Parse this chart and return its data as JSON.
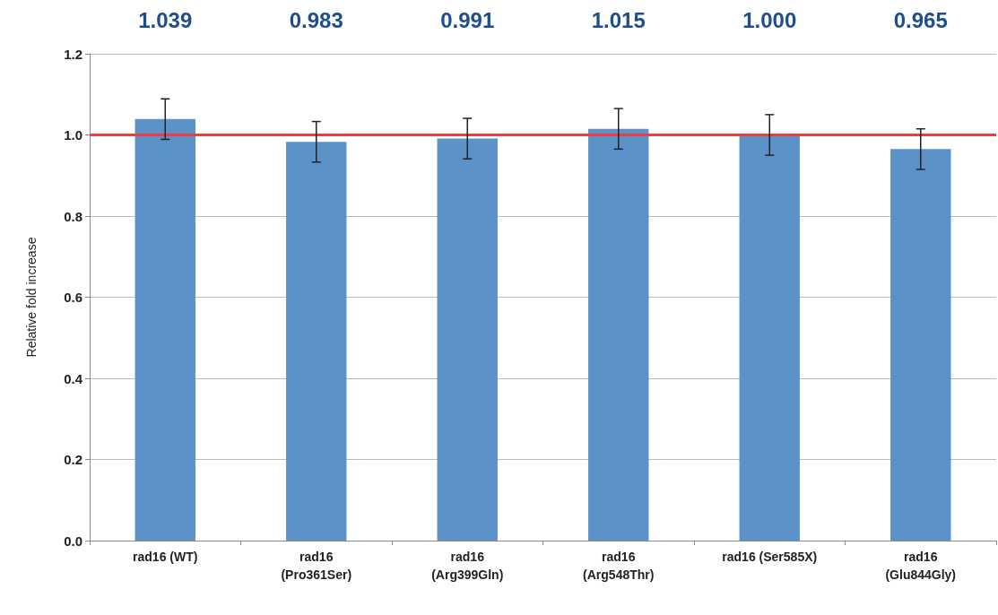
{
  "chart_data": {
    "type": "bar",
    "ylabel": "Relative fold increase",
    "categories": [
      "rad16 (WT)",
      "rad16\n(Pro361Ser)",
      "rad16\n(Arg399Gln)",
      "rad16\n(Arg548Thr)",
      "rad16 (Ser585X)",
      "rad16\n(Glu844Gly)"
    ],
    "values": [
      1.039,
      0.983,
      0.991,
      1.015,
      1.0,
      0.965
    ],
    "errors": [
      0.05,
      0.05,
      0.05,
      0.05,
      0.05,
      0.05
    ],
    "color": "#5b93c9",
    "annotations": [
      "1.039",
      "0.983",
      "0.991",
      "1.015",
      "1.000",
      "0.965"
    ],
    "ylim": [
      0,
      1.2
    ],
    "yticks": [
      {
        "value": 0,
        "label": "0.0"
      },
      {
        "value": 0.2,
        "label": "0.2"
      },
      {
        "value": 0.4,
        "label": "0.4"
      },
      {
        "value": 0.6,
        "label": "0.6"
      },
      {
        "value": 0.8,
        "label": "0.8"
      },
      {
        "value": 1.0,
        "label": "1.0"
      },
      {
        "value": 1.2,
        "label": "1.2"
      }
    ],
    "grid": "y",
    "ref_lines": [
      {
        "axis": "y",
        "value": 1.0,
        "color": "#f03c3c"
      }
    ]
  }
}
